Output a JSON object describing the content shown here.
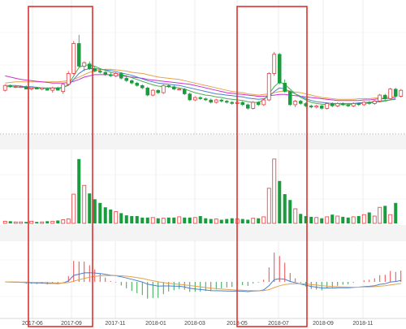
{
  "chart_data": {
    "type": "candlestick",
    "title": "",
    "xlabel": "",
    "ylabel": "",
    "grid": true,
    "legend": "none",
    "x_ticks": [
      "2017-06",
      "2017-09",
      "2017-11",
      "2018-01",
      "2018-03",
      "2018-05",
      "2018-07",
      "2018-09",
      "2018-11"
    ],
    "price_ylim": [
      0,
      100
    ],
    "candles": [
      {
        "o": 33,
        "h": 38,
        "l": 32,
        "c": 37
      },
      {
        "o": 37,
        "h": 38,
        "l": 35,
        "c": 36
      },
      {
        "o": 36,
        "h": 37,
        "l": 35,
        "c": 36
      },
      {
        "o": 36,
        "h": 37,
        "l": 35,
        "c": 36
      },
      {
        "o": 36,
        "h": 37,
        "l": 34,
        "c": 34
      },
      {
        "o": 34,
        "h": 35,
        "l": 33,
        "c": 35
      },
      {
        "o": 35,
        "h": 36,
        "l": 34,
        "c": 34
      },
      {
        "o": 34,
        "h": 35,
        "l": 33,
        "c": 35
      },
      {
        "o": 34,
        "h": 35,
        "l": 33,
        "c": 33
      },
      {
        "o": 33,
        "h": 36,
        "l": 31,
        "c": 35
      },
      {
        "o": 35,
        "h": 36,
        "l": 33,
        "c": 33
      },
      {
        "o": 32,
        "h": 39,
        "l": 30,
        "c": 38
      },
      {
        "o": 38,
        "h": 49,
        "l": 37,
        "c": 47
      },
      {
        "o": 47,
        "h": 74,
        "l": 46,
        "c": 72
      },
      {
        "o": 72,
        "h": 79,
        "l": 52,
        "c": 53
      },
      {
        "o": 53,
        "h": 57,
        "l": 49,
        "c": 56
      },
      {
        "o": 55,
        "h": 57,
        "l": 50,
        "c": 51
      },
      {
        "o": 51,
        "h": 53,
        "l": 48,
        "c": 49
      },
      {
        "o": 49,
        "h": 51,
        "l": 47,
        "c": 48
      },
      {
        "o": 48,
        "h": 49,
        "l": 45,
        "c": 46
      },
      {
        "o": 46,
        "h": 48,
        "l": 44,
        "c": 45
      },
      {
        "o": 45,
        "h": 48,
        "l": 44,
        "c": 47
      },
      {
        "o": 47,
        "h": 48,
        "l": 42,
        "c": 43
      },
      {
        "o": 43,
        "h": 45,
        "l": 40,
        "c": 41
      },
      {
        "o": 41,
        "h": 42,
        "l": 38,
        "c": 39
      },
      {
        "o": 39,
        "h": 40,
        "l": 36,
        "c": 37
      },
      {
        "o": 37,
        "h": 38,
        "l": 34,
        "c": 35
      },
      {
        "o": 35,
        "h": 36,
        "l": 28,
        "c": 29
      },
      {
        "o": 29,
        "h": 34,
        "l": 28,
        "c": 33
      },
      {
        "o": 33,
        "h": 34,
        "l": 30,
        "c": 31
      },
      {
        "o": 31,
        "h": 38,
        "l": 30,
        "c": 37
      },
      {
        "o": 37,
        "h": 38,
        "l": 35,
        "c": 36
      },
      {
        "o": 36,
        "h": 37,
        "l": 33,
        "c": 34
      },
      {
        "o": 34,
        "h": 35,
        "l": 33,
        "c": 34
      },
      {
        "o": 34,
        "h": 35,
        "l": 29,
        "c": 30
      },
      {
        "o": 30,
        "h": 31,
        "l": 24,
        "c": 25
      },
      {
        "o": 25,
        "h": 28,
        "l": 24,
        "c": 27
      },
      {
        "o": 27,
        "h": 28,
        "l": 25,
        "c": 26
      },
      {
        "o": 26,
        "h": 27,
        "l": 24,
        "c": 25
      },
      {
        "o": 25,
        "h": 26,
        "l": 22,
        "c": 23
      },
      {
        "o": 23,
        "h": 26,
        "l": 22,
        "c": 25
      },
      {
        "o": 25,
        "h": 26,
        "l": 23,
        "c": 24
      },
      {
        "o": 24,
        "h": 25,
        "l": 22,
        "c": 23
      },
      {
        "o": 23,
        "h": 24,
        "l": 21,
        "c": 22
      },
      {
        "o": 22,
        "h": 24,
        "l": 21,
        "c": 23
      },
      {
        "o": 23,
        "h": 24,
        "l": 20,
        "c": 21
      },
      {
        "o": 21,
        "h": 22,
        "l": 17,
        "c": 18
      },
      {
        "o": 18,
        "h": 24,
        "l": 17,
        "c": 23
      },
      {
        "o": 23,
        "h": 24,
        "l": 20,
        "c": 21
      },
      {
        "o": 21,
        "h": 26,
        "l": 20,
        "c": 25
      },
      {
        "o": 25,
        "h": 48,
        "l": 24,
        "c": 47
      },
      {
        "o": 47,
        "h": 65,
        "l": 45,
        "c": 63
      },
      {
        "o": 63,
        "h": 64,
        "l": 38,
        "c": 39
      },
      {
        "o": 39,
        "h": 42,
        "l": 31,
        "c": 32
      },
      {
        "o": 32,
        "h": 33,
        "l": 20,
        "c": 21
      },
      {
        "o": 21,
        "h": 25,
        "l": 19,
        "c": 24
      },
      {
        "o": 24,
        "h": 25,
        "l": 21,
        "c": 22
      },
      {
        "o": 22,
        "h": 23,
        "l": 19,
        "c": 20
      },
      {
        "o": 20,
        "h": 21,
        "l": 18,
        "c": 19
      },
      {
        "o": 19,
        "h": 21,
        "l": 18,
        "c": 20
      },
      {
        "o": 20,
        "h": 21,
        "l": 17,
        "c": 18
      },
      {
        "o": 18,
        "h": 23,
        "l": 17,
        "c": 22
      },
      {
        "o": 22,
        "h": 23,
        "l": 19,
        "c": 20
      },
      {
        "o": 20,
        "h": 23,
        "l": 19,
        "c": 22
      },
      {
        "o": 22,
        "h": 23,
        "l": 20,
        "c": 21
      },
      {
        "o": 21,
        "h": 22,
        "l": 19,
        "c": 20
      },
      {
        "o": 20,
        "h": 23,
        "l": 19,
        "c": 22
      },
      {
        "o": 22,
        "h": 23,
        "l": 20,
        "c": 21
      },
      {
        "o": 21,
        "h": 24,
        "l": 20,
        "c": 23
      },
      {
        "o": 23,
        "h": 24,
        "l": 21,
        "c": 22
      },
      {
        "o": 22,
        "h": 25,
        "l": 21,
        "c": 24
      },
      {
        "o": 24,
        "h": 30,
        "l": 23,
        "c": 29
      },
      {
        "o": 29,
        "h": 30,
        "l": 25,
        "c": 26
      },
      {
        "o": 26,
        "h": 35,
        "l": 25,
        "c": 34
      },
      {
        "o": 34,
        "h": 35,
        "l": 27,
        "c": 28
      },
      {
        "o": 28,
        "h": 34,
        "l": 27,
        "c": 33
      }
    ],
    "ma_series": [
      {
        "color": "#e7a24a",
        "values": [
          39,
          39.5,
          40,
          40,
          40,
          40,
          40,
          40,
          40,
          40,
          40,
          40.5,
          41,
          42,
          44,
          46,
          48,
          49,
          50,
          50.5,
          50.5,
          50,
          49.5,
          49,
          48,
          47.5,
          47,
          46,
          45,
          44,
          43.5,
          43,
          42.5,
          42,
          41,
          40,
          39,
          38,
          37,
          36,
          35,
          34,
          33,
          32,
          31.5,
          31,
          30,
          29.5,
          29,
          29.5,
          30,
          31,
          32,
          32.5,
          32,
          31.5,
          31,
          30,
          29,
          28,
          27,
          26.5,
          26,
          25.5,
          25.5,
          25.5,
          25.5,
          26,
          26,
          26,
          26.5,
          27,
          27,
          27.5,
          28
        ]
      },
      {
        "color": "#cc33cc",
        "values": [
          45,
          44,
          43,
          42,
          41.5,
          41,
          40.5,
          40,
          39.5,
          39,
          39,
          39,
          39.5,
          40.5,
          42,
          44,
          45,
          46,
          46,
          46,
          46,
          45.5,
          45,
          44.5,
          44,
          43.5,
          43,
          42,
          41.5,
          41,
          40.5,
          40,
          39.5,
          39,
          38.5,
          38,
          37,
          36,
          35,
          34,
          33,
          32,
          31,
          30.5,
          30,
          29.5,
          29,
          28.5,
          28,
          28,
          28.5,
          29,
          29.5,
          29.5,
          29,
          28.5,
          28,
          27.5,
          27,
          26.5,
          26,
          25.5,
          25,
          24.5,
          24.5,
          24.5,
          24.5,
          24.5,
          25,
          25,
          25.5,
          26,
          26,
          26.5,
          27
        ]
      },
      {
        "color": "#4a7fd4",
        "values": [
          37,
          37,
          37,
          36.5,
          36,
          36,
          35.5,
          35,
          35,
          35,
          35,
          35.5,
          37,
          42,
          47,
          50,
          51,
          51,
          50.5,
          50,
          49.5,
          48.5,
          47.5,
          46.5,
          45.5,
          44,
          42.5,
          41,
          40,
          39,
          38.5,
          38,
          37.5,
          37,
          36,
          35,
          34,
          33,
          32,
          31,
          30,
          29.5,
          29,
          28.5,
          28,
          27.5,
          26.5,
          26,
          25.5,
          26,
          28,
          32,
          35,
          34,
          32,
          30,
          28,
          26,
          24.5,
          23.5,
          23,
          22.5,
          22,
          22,
          22,
          22,
          22,
          22.5,
          23,
          23,
          23.5,
          24,
          24.5,
          25,
          25.5
        ]
      },
      {
        "color": "#4cae4c",
        "values": [
          36,
          36,
          36,
          35.5,
          35.5,
          35,
          35,
          34.5,
          34.5,
          34.5,
          34.5,
          35,
          38,
          45,
          52,
          54,
          54,
          53,
          51,
          49.5,
          48,
          47,
          46,
          45,
          43.5,
          42,
          40.5,
          39,
          37.5,
          36.5,
          36,
          36,
          35.5,
          35,
          34,
          32.5,
          31,
          30,
          29,
          28.5,
          27.5,
          27,
          26,
          25.5,
          25,
          24.5,
          23.5,
          23,
          23,
          25,
          30,
          36,
          40,
          38,
          34,
          30,
          27,
          25,
          23,
          22,
          21.5,
          21,
          21,
          21,
          21,
          21,
          21.5,
          22,
          22,
          22.5,
          23,
          23.5,
          24,
          25,
          26
        ]
      }
    ],
    "volume_ylim": [
      0,
      100
    ],
    "volumes": [
      3,
      3,
      2,
      2,
      2,
      3,
      2,
      2,
      3,
      3,
      4,
      5,
      6,
      40,
      88,
      52,
      41,
      33,
      28,
      22,
      19,
      16,
      14,
      11,
      10,
      10,
      8,
      8,
      8,
      7,
      7,
      8,
      8,
      9,
      8,
      8,
      8,
      10,
      7,
      6,
      6,
      5,
      6,
      7,
      6,
      6,
      5,
      7,
      7,
      9,
      48,
      88,
      58,
      40,
      32,
      20,
      13,
      10,
      9,
      8,
      7,
      9,
      12,
      10,
      9,
      8,
      9,
      10,
      12,
      15,
      10,
      22,
      24,
      12,
      28
    ]
  }
}
